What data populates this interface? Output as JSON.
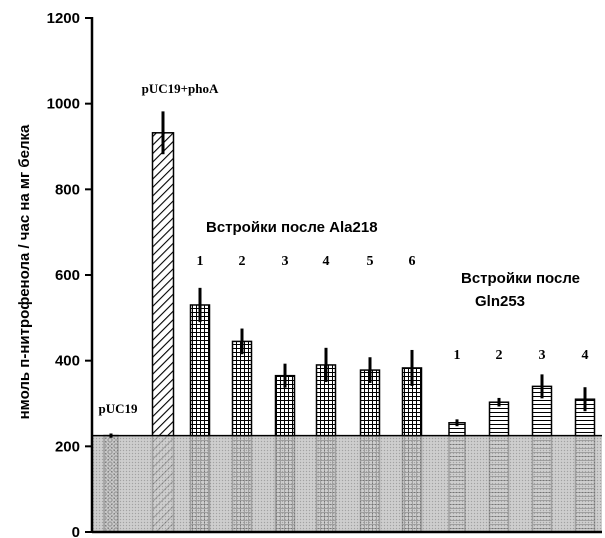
{
  "chart_data": {
    "type": "bar",
    "title": "",
    "ylabel": "нмоль п-нитрофенола / час на мг белка",
    "ylim": [
      0,
      1200
    ],
    "yticks": [
      0,
      200,
      400,
      600,
      800,
      1000,
      1200
    ],
    "background_level": 225,
    "colors": {
      "axis": "#000000",
      "shade": "#c8c8c8",
      "bar_fill": "#ffffff"
    },
    "bars": [
      {
        "label": "pUC19",
        "value": 225,
        "error": 5,
        "pattern": "crosshatch"
      },
      {
        "label": "pUC19+phoA",
        "value": 932,
        "error": 50,
        "pattern": "diagonal"
      },
      {
        "label": "1",
        "value": 530,
        "error": 40,
        "pattern": "grid"
      },
      {
        "label": "2",
        "value": 445,
        "error": 30,
        "pattern": "grid"
      },
      {
        "label": "3",
        "value": 365,
        "error": 28,
        "pattern": "grid"
      },
      {
        "label": "4",
        "value": 390,
        "error": 40,
        "pattern": "grid"
      },
      {
        "label": "5",
        "value": 378,
        "error": 30,
        "pattern": "grid"
      },
      {
        "label": "6",
        "value": 383,
        "error": 42,
        "pattern": "grid"
      },
      {
        "label": "1",
        "value": 255,
        "error": 8,
        "pattern": "hlines"
      },
      {
        "label": "2",
        "value": 303,
        "error": 10,
        "pattern": "hlines"
      },
      {
        "label": "3",
        "value": 340,
        "error": 28,
        "pattern": "hlines"
      },
      {
        "label": "4",
        "value": 310,
        "error": 28,
        "pattern": "hlines"
      }
    ],
    "annotations": {
      "group1": "Встройки после Ala218",
      "group2_line1": "Встройки после",
      "group2_line2": "Gln253"
    }
  }
}
